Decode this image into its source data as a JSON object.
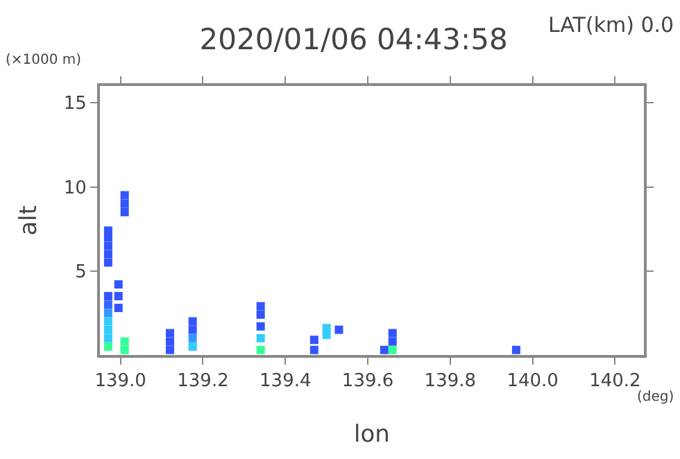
{
  "chart_data": {
    "type": "scatter",
    "title": "2020/01/06 04:43:58",
    "xlabel": "lon",
    "ylabel": "alt",
    "annotations": [
      "LAT(km) 0.0",
      "(×1000 m)",
      "(deg)"
    ],
    "xlim": [
      138.95,
      140.27
    ],
    "xticks": [
      {
        "value": 139,
        "label": "139.0"
      },
      {
        "value": 139.2,
        "label": "139.2"
      },
      {
        "value": 139.4,
        "label": "139.4"
      },
      {
        "value": 139.6,
        "label": "139.6"
      },
      {
        "value": 139.8,
        "label": "139.8"
      },
      {
        "value": 140,
        "label": "140.0"
      },
      {
        "value": 140.2,
        "label": "140.2"
      }
    ],
    "ylim": [
      0,
      16
    ],
    "yticks": [
      5,
      10,
      15
    ],
    "marker": "square",
    "series": [
      {
        "x": [
          138.97,
          138.97,
          138.97,
          138.97,
          138.97,
          138.97,
          138.97,
          138.97,
          138.97,
          138.97,
          138.97,
          138.97,
          139.01,
          139.01,
          139.01,
          138.995,
          138.995,
          138.995,
          139.01,
          139.01,
          139.12,
          139.12,
          139.12,
          139.175,
          139.175,
          139.175,
          139.175,
          139.34,
          139.34,
          139.34,
          139.34,
          139.34,
          139.47,
          139.47,
          139.5,
          139.5,
          139.53,
          139.64,
          139.66,
          139.66,
          139.66,
          139.96
        ],
        "values": [
          0.5,
          1,
          1.5,
          2,
          2.5,
          3,
          3.5,
          5.5,
          6,
          6.5,
          7,
          7.4,
          8.5,
          9,
          9.5,
          2.8,
          3.5,
          4.2,
          0.3,
          0.8,
          0.3,
          0.8,
          1.3,
          0.5,
          1,
          1.5,
          2,
          0.3,
          1,
          1.7,
          2.4,
          2.9,
          0.3,
          0.9,
          1.2,
          1.6,
          1.5,
          0.3,
          0.3,
          0.8,
          1.3,
          0.3
        ],
        "colors": [
          "#33ff99",
          "#33ccff",
          "#33ccff",
          "#33ccff",
          "#3399ff",
          "#3366ff",
          "#3355ff",
          "#3355ff",
          "#3355ff",
          "#3355ff",
          "#3355ff",
          "#3355ff",
          "#3355ff",
          "#3355ff",
          "#3355ff",
          "#3355ff",
          "#3355ff",
          "#3355ff",
          "#33ff99",
          "#33ff99",
          "#3355ff",
          "#3355ff",
          "#3355ff",
          "#33ccff",
          "#3399ff",
          "#3355ff",
          "#3355ff",
          "#33ff99",
          "#33ccff",
          "#3355ff",
          "#3355ff",
          "#3355ff",
          "#3355ff",
          "#3355ff",
          "#33ccff",
          "#33ccff",
          "#3355ff",
          "#3355ff",
          "#33ff99",
          "#3355ff",
          "#3355ff",
          "#3355ff"
        ]
      }
    ]
  }
}
